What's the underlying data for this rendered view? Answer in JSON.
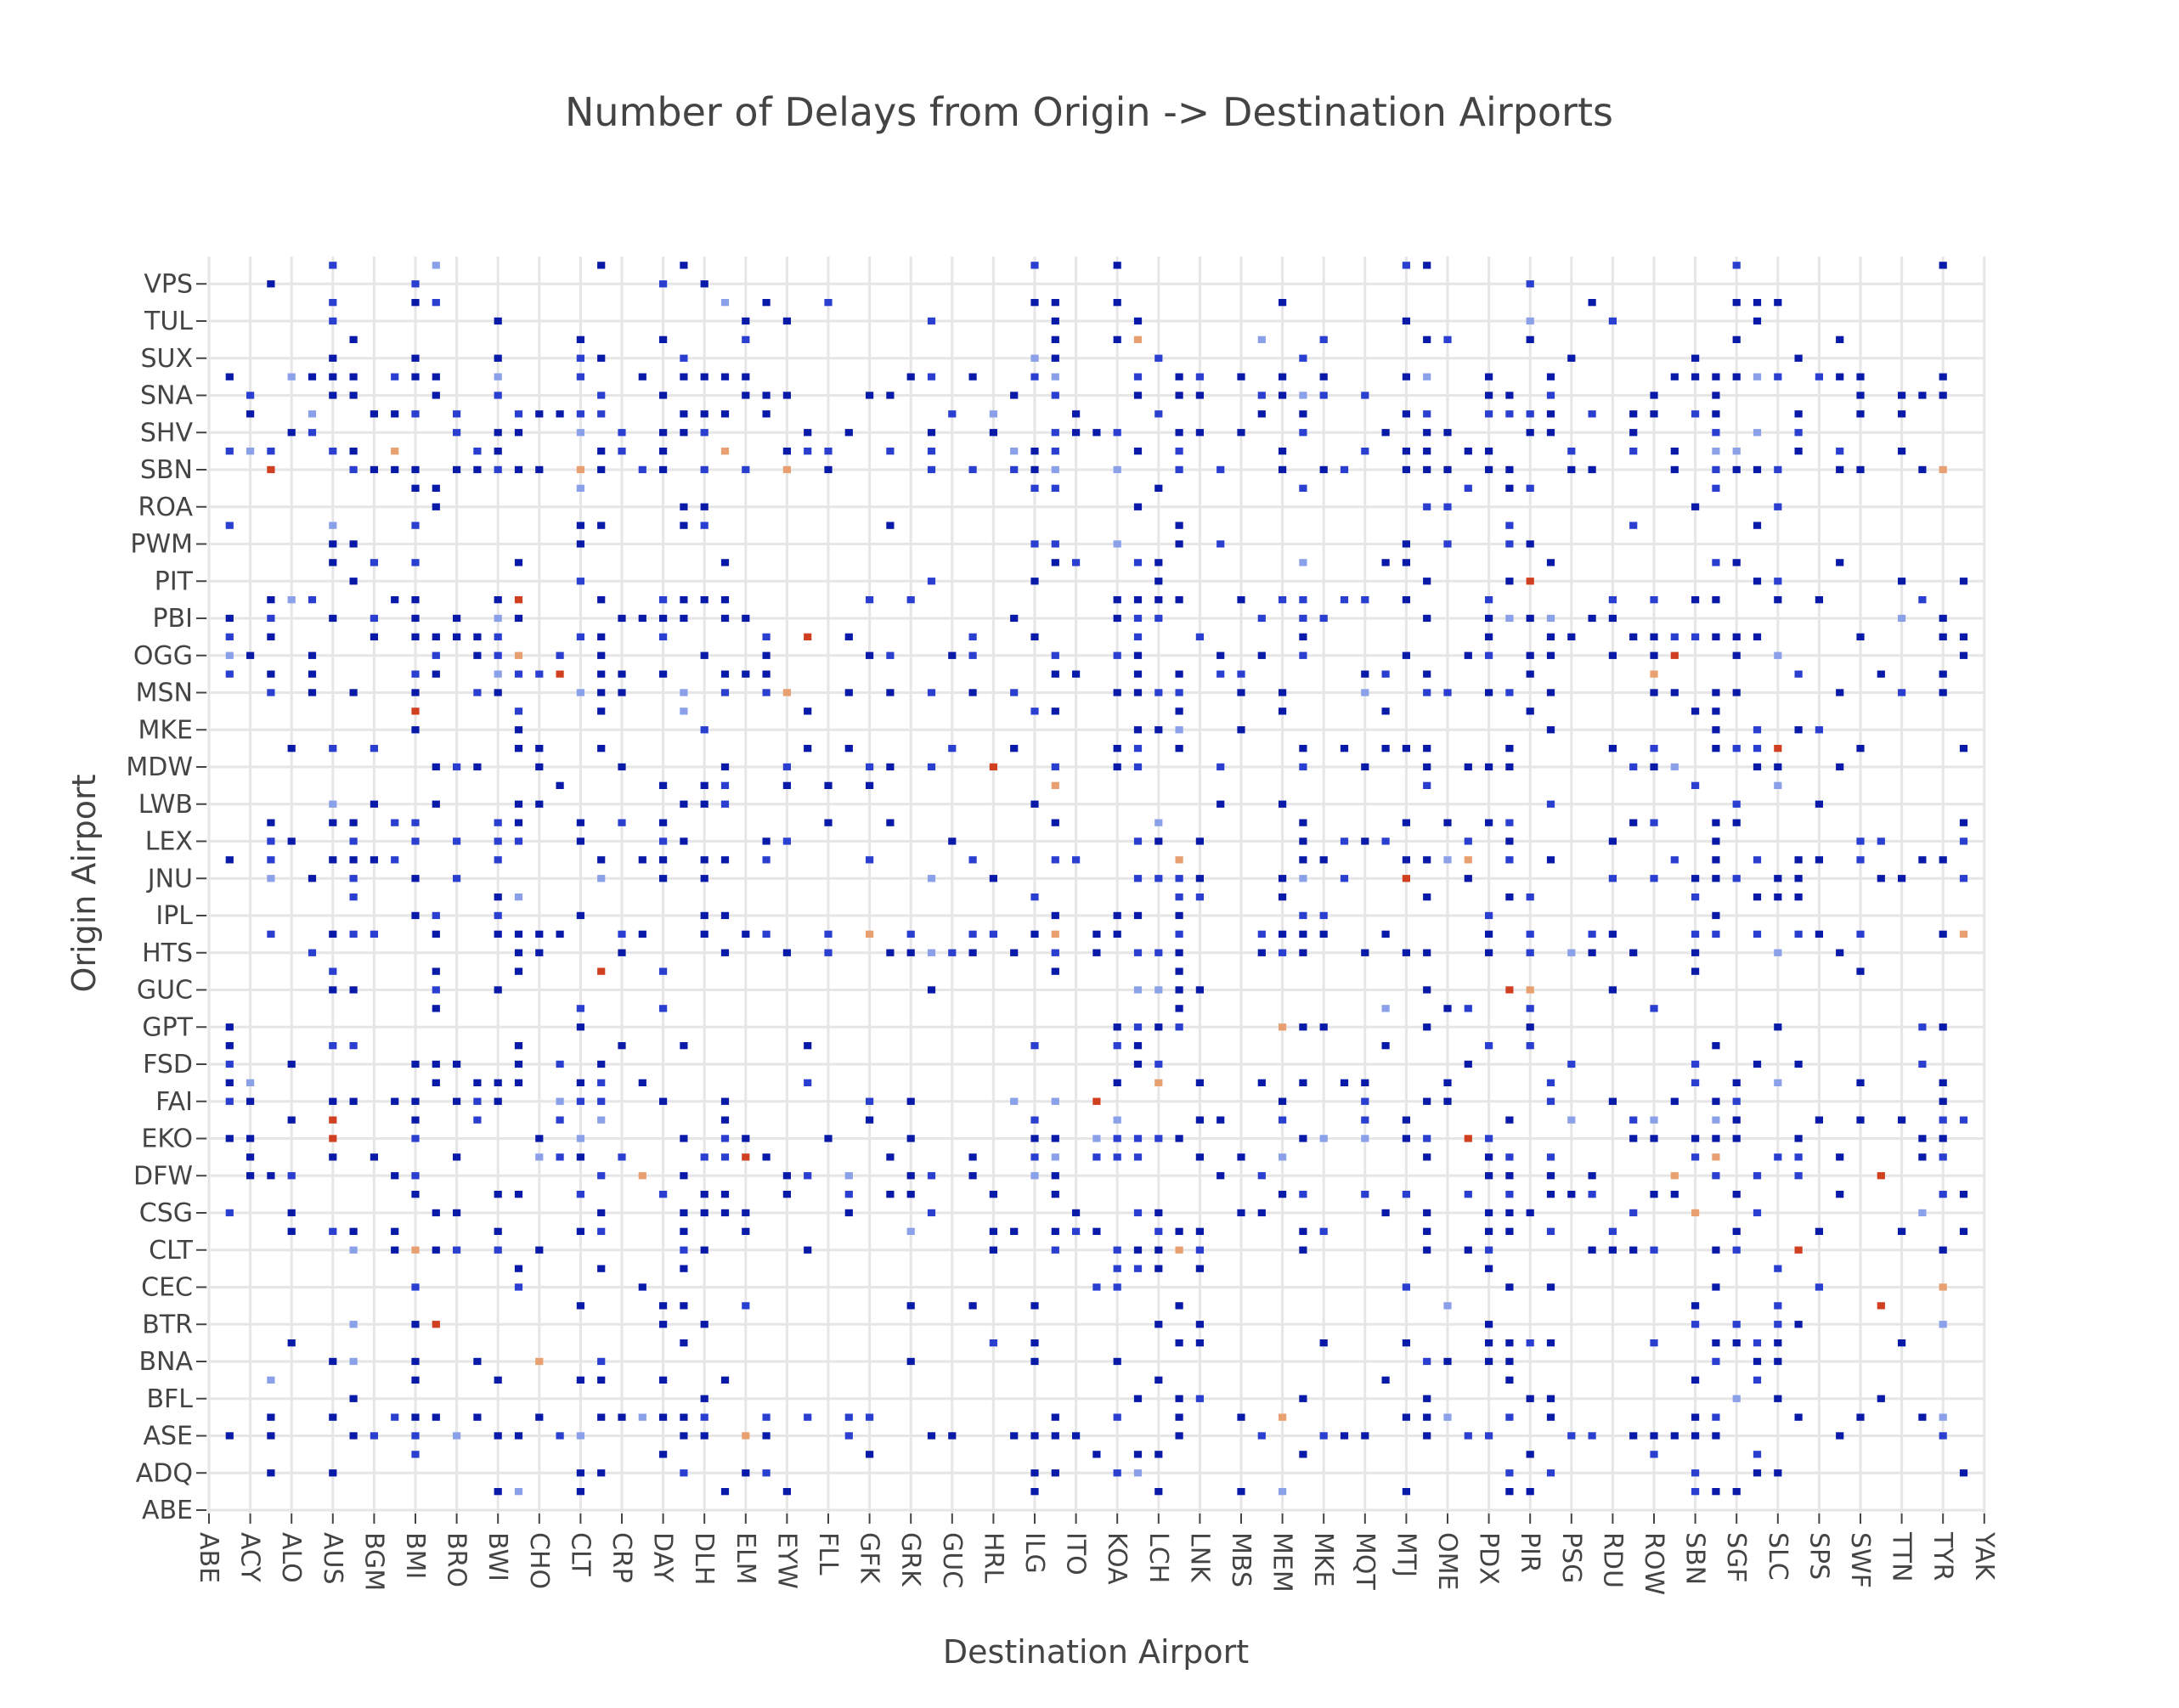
{
  "chart_data": {
    "type": "heatmap",
    "title": "Number of Delays from Origin -> Destination Airports",
    "xlabel": "Destination Airport",
    "ylabel": "Origin Airport",
    "x_tick_labels": [
      "ABE",
      "ACY",
      "ALO",
      "AUS",
      "BGM",
      "BMI",
      "BRO",
      "BWI",
      "CHO",
      "CLT",
      "CRP",
      "DAY",
      "DLH",
      "ELM",
      "EYW",
      "FLL",
      "GFK",
      "GRK",
      "GUC",
      "HRL",
      "ILG",
      "ITO",
      "KOA",
      "LCH",
      "LNK",
      "MBS",
      "MEM",
      "MKE",
      "MQT",
      "MTJ",
      "OME",
      "PDX",
      "PIR",
      "PSG",
      "RDU",
      "ROW",
      "SBN",
      "SGF",
      "SLC",
      "SPS",
      "SWF",
      "TTN",
      "TYR",
      "YAK"
    ],
    "y_tick_labels": [
      "ABE",
      "ADQ",
      "ASE",
      "BFL",
      "BNA",
      "BTR",
      "CEC",
      "CLT",
      "CSG",
      "DFW",
      "EKO",
      "FAI",
      "FSD",
      "GPT",
      "GUC",
      "HTS",
      "IPL",
      "JNU",
      "LEX",
      "LWB",
      "MDW",
      "MKE",
      "MSN",
      "OGG",
      "PBI",
      "PIT",
      "PWM",
      "ROA",
      "SBN",
      "SHV",
      "SNA",
      "SUX",
      "TUL",
      "VPS"
    ],
    "colorscale": [
      "#0a1aa8",
      "#2a3fd0",
      "#8aa0e8",
      "#e8a070",
      "#d04020"
    ],
    "grid": true,
    "dense_columns": [
      "AUS",
      "DLH",
      "ILG",
      "LCH",
      "MEM",
      "MTJ",
      "PIR",
      "SGF",
      "SLC",
      "CLT",
      "DAY",
      "BWI",
      "BMI",
      "KOA",
      "PDX",
      "SBN"
    ],
    "dense_rows": [
      "ASE",
      "CLT",
      "CSG",
      "DFW",
      "EKO",
      "FAI",
      "HTS",
      "JNU",
      "LEX",
      "MDW",
      "MSN",
      "OGG",
      "PBI",
      "SBN",
      "SHV",
      "SNA"
    ],
    "seed": 1234
  }
}
